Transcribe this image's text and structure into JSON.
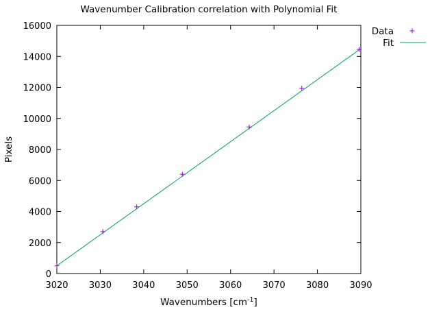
{
  "chart_data": {
    "type": "scatter",
    "title": "Wavenumber Calibration correlation with Polynomial Fit",
    "xlabel": "Wavenumbers [cm",
    "xlabel_sup": "-1",
    "xlabel_end": "]",
    "ylabel": "Pixels",
    "xlim": [
      3020,
      3090
    ],
    "ylim": [
      0,
      16000
    ],
    "x_ticks": [
      3020,
      3030,
      3040,
      3050,
      3060,
      3070,
      3080,
      3090
    ],
    "y_ticks": [
      0,
      2000,
      4000,
      6000,
      8000,
      10000,
      12000,
      14000,
      16000
    ],
    "grid": false,
    "legend_position": "top-right, outside plot",
    "series": [
      {
        "name": "Data",
        "kind": "points",
        "marker": "plus",
        "color": "#9400d3",
        "x": [
          3020.0,
          3030.6,
          3038.4,
          3048.9,
          3064.3,
          3076.4,
          3089.6
        ],
        "y": [
          500,
          2700,
          4300,
          6400,
          9450,
          11950,
          14450
        ]
      },
      {
        "name": "Fit",
        "kind": "line",
        "color": "#009e73",
        "x": [
          3020,
          3090
        ],
        "y": [
          500,
          14500
        ]
      }
    ]
  }
}
